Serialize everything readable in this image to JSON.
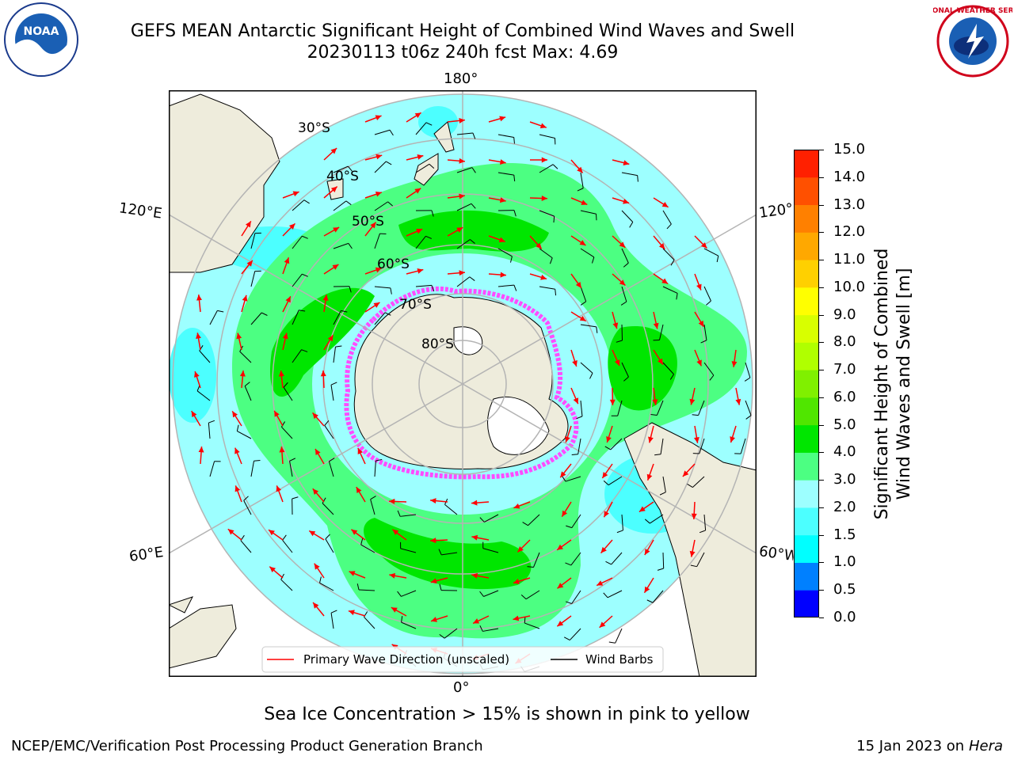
{
  "header": {
    "title_line1": "GEFS MEAN Antarctic Significant Height of Combined Wind Waves and Swell",
    "title_line2": "20230113 t06z 240h fcst   Max: 4.69"
  },
  "logos": {
    "noaa_text": "NOAA",
    "nws_text": "NATIONAL WEATHER SERVICE"
  },
  "map": {
    "lon_labels": {
      "top": "180°",
      "bottom": "0°",
      "left_upper": "120°E",
      "left_lower": "60°E",
      "right_upper": "120°W",
      "right_lower": "60°W"
    },
    "lat_labels": [
      "30°S",
      "40°S",
      "50°S",
      "60°S",
      "70°S",
      "80°S"
    ],
    "colors": {
      "land": "#eeecdc",
      "ocean_outside": "#ffffff",
      "light_cyan": "#9dffff",
      "cyan": "#4cffff",
      "light_green": "#4cff82",
      "green": "#00e600",
      "ice_edge": "#ff4cff",
      "arrow": "#ff0000",
      "grid": "#b4b4b4"
    },
    "legend": {
      "wave_direction_label": "Primary Wave Direction (unscaled)",
      "wind_barbs_label": "Wind Barbs"
    }
  },
  "colorbar": {
    "title_line1": "Significant Height of Combined",
    "title_line2": "Wind Waves and Swell [m]",
    "levels": [
      "0.0",
      "0.5",
      "1.0",
      "1.5",
      "2.0",
      "3.0",
      "4.0",
      "5.0",
      "6.0",
      "7.0",
      "8.0",
      "9.0",
      "10.0",
      "11.0",
      "12.0",
      "13.0",
      "14.0",
      "15.0"
    ],
    "colors": [
      "#0000ff",
      "#0080ff",
      "#00ffff",
      "#4cffff",
      "#9dffff",
      "#4cff82",
      "#00e600",
      "#50e600",
      "#80f000",
      "#b0ff00",
      "#d8ff00",
      "#ffff00",
      "#ffd000",
      "#ffa800",
      "#ff8000",
      "#ff5000",
      "#ff2000"
    ]
  },
  "caption": "Sea Ice Concentration > 15% is shown in pink to yellow",
  "footer": {
    "left": "NCEP/EMC/Verification Post Processing Product Generation Branch",
    "right_prefix": "15 Jan 2023 on ",
    "right_host": "Hera"
  }
}
